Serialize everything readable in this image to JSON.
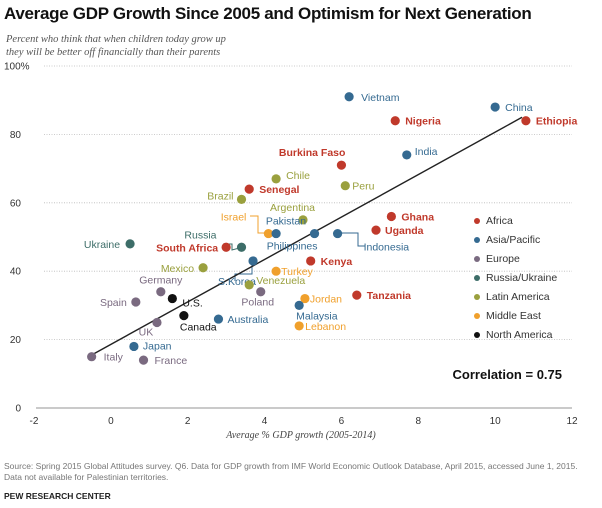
{
  "chart_data": {
    "type": "scatter",
    "title": "Average GDP Growth Since 2005 and Optimism for Next Generation",
    "subtitle": [
      "Percent who think that when children today grow up",
      "they will be better off financially than their parents"
    ],
    "xlabel": "Average % GDP growth (2005-2014)",
    "ylabel": "",
    "xlim": [
      -2,
      12
    ],
    "ylim": [
      0,
      100
    ],
    "xticks": [
      "-2",
      "0",
      "2",
      "4",
      "6",
      "8",
      "10",
      "12"
    ],
    "yticks": [
      "0",
      "20",
      "40",
      "60",
      "80",
      "100%"
    ],
    "grid": "horizontal dotted",
    "legend_position": "right",
    "annotation": "Correlation = 0.75",
    "trendline": {
      "x": [
        -0.5,
        10.7
      ],
      "y": [
        15.5,
        85
      ]
    },
    "regions": [
      {
        "name": "Africa",
        "color": "#c0392b"
      },
      {
        "name": "Asia/Pacific",
        "color": "#356a91"
      },
      {
        "name": "Europe",
        "color": "#7a6a80"
      },
      {
        "name": "Russia/Ukraine",
        "color": "#3d6d68"
      },
      {
        "name": "Latin America",
        "color": "#9aa03e"
      },
      {
        "name": "Middle East",
        "color": "#f0a02c"
      },
      {
        "name": "North America",
        "color": "#111111"
      }
    ],
    "points": [
      {
        "country": "Vietnam",
        "region": "Asia/Pacific",
        "x": 6.2,
        "y": 91
      },
      {
        "country": "China",
        "region": "Asia/Pacific",
        "x": 10.0,
        "y": 88
      },
      {
        "country": "Ethiopia",
        "region": "Africa",
        "x": 10.8,
        "y": 84
      },
      {
        "country": "Nigeria",
        "region": "Africa",
        "x": 7.4,
        "y": 84
      },
      {
        "country": "India",
        "region": "Asia/Pacific",
        "x": 7.7,
        "y": 74
      },
      {
        "country": "Burkina Faso",
        "region": "Africa",
        "x": 6.0,
        "y": 71
      },
      {
        "country": "Peru",
        "region": "Latin America",
        "x": 6.1,
        "y": 65
      },
      {
        "country": "Chile",
        "region": "Latin America",
        "x": 4.3,
        "y": 67
      },
      {
        "country": "Senegal",
        "region": "Africa",
        "x": 3.6,
        "y": 64
      },
      {
        "country": "Brazil",
        "region": "Latin America",
        "x": 3.4,
        "y": 61
      },
      {
        "country": "Argentina",
        "region": "Latin America",
        "x": 5.0,
        "y": 55
      },
      {
        "country": "Ghana",
        "region": "Africa",
        "x": 7.3,
        "y": 56
      },
      {
        "country": "Uganda",
        "region": "Africa",
        "x": 6.9,
        "y": 52
      },
      {
        "country": "Israel",
        "region": "Middle East",
        "x": 4.1,
        "y": 51
      },
      {
        "country": "Pakistan",
        "region": "Asia/Pacific",
        "x": 4.3,
        "y": 51
      },
      {
        "country": "Philippines",
        "region": "Asia/Pacific",
        "x": 5.3,
        "y": 51
      },
      {
        "country": "Indonesia",
        "region": "Asia/Pacific",
        "x": 5.9,
        "y": 51
      },
      {
        "country": "Ukraine",
        "region": "Russia/Ukraine",
        "x": 0.5,
        "y": 48
      },
      {
        "country": "Russia",
        "region": "Russia/Ukraine",
        "x": 3.4,
        "y": 47
      },
      {
        "country": "South Africa",
        "region": "Africa",
        "x": 3.0,
        "y": 47
      },
      {
        "country": "Kenya",
        "region": "Africa",
        "x": 5.2,
        "y": 43
      },
      {
        "country": "S.Korea",
        "region": "Asia/Pacific",
        "x": 3.7,
        "y": 43
      },
      {
        "country": "Mexico",
        "region": "Latin America",
        "x": 2.4,
        "y": 41
      },
      {
        "country": "Turkey",
        "region": "Middle East",
        "x": 4.3,
        "y": 40
      },
      {
        "country": "Venezuela",
        "region": "Latin America",
        "x": 3.6,
        "y": 36
      },
      {
        "country": "Poland",
        "region": "Europe",
        "x": 3.9,
        "y": 34
      },
      {
        "country": "Germany",
        "region": "Europe",
        "x": 1.3,
        "y": 34
      },
      {
        "country": "Tanzania",
        "region": "Africa",
        "x": 6.4,
        "y": 33
      },
      {
        "country": "U.S.",
        "region": "North America",
        "x": 1.6,
        "y": 32
      },
      {
        "country": "Jordan",
        "region": "Middle East",
        "x": 5.05,
        "y": 32
      },
      {
        "country": "Spain",
        "region": "Europe",
        "x": 0.65,
        "y": 31
      },
      {
        "country": "Malaysia",
        "region": "Asia/Pacific",
        "x": 4.9,
        "y": 30
      },
      {
        "country": "Canada",
        "region": "North America",
        "x": 1.9,
        "y": 27
      },
      {
        "country": "Australia",
        "region": "Asia/Pacific",
        "x": 2.8,
        "y": 26
      },
      {
        "country": "UK",
        "region": "Europe",
        "x": 1.2,
        "y": 25
      },
      {
        "country": "Lebanon",
        "region": "Middle East",
        "x": 4.9,
        "y": 24
      },
      {
        "country": "Japan",
        "region": "Asia/Pacific",
        "x": 0.6,
        "y": 18
      },
      {
        "country": "Italy",
        "region": "Europe",
        "x": -0.5,
        "y": 15
      },
      {
        "country": "France",
        "region": "Europe",
        "x": 0.85,
        "y": 14
      }
    ]
  },
  "footer": {
    "source": "Source: Spring 2015 Global Attitudes survey. Q6. Data for GDP growth from IMF World Economic Outlook Database, April 2015, accessed June 1, 2015. Data not available for Palestinian territories.",
    "brand": "PEW RESEARCH CENTER"
  }
}
